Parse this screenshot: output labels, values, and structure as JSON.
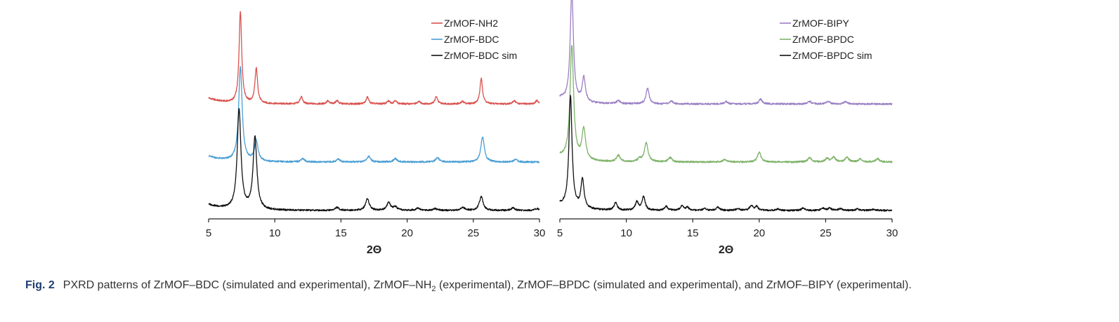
{
  "caption": {
    "label": "Fig. 2",
    "text_before": "PXRD patterns of ZrMOF–BDC (simulated and experimental), ZrMOF–NH",
    "subscript": "2",
    "text_after": " (experimental), ZrMOF–BPDC (simulated and experimental), and ZrMOF–BIPY (experimental)."
  },
  "chart_data": [
    {
      "type": "line",
      "xlabel": "2Θ",
      "ylabel": "",
      "xlim": [
        5,
        30
      ],
      "xticks": [
        5,
        10,
        15,
        20,
        25,
        30
      ],
      "y_axis_shown": false,
      "grid": false,
      "legend_position": "top-right",
      "series": [
        {
          "name": "ZrMOF-NH2",
          "color": "#d9534f",
          "offset": 2.2,
          "peaks": [
            {
              "x": 7.4,
              "h": 1.9,
              "w": 0.12
            },
            {
              "x": 8.6,
              "h": 0.72,
              "w": 0.12
            },
            {
              "x": 12.0,
              "h": 0.15,
              "w": 0.12
            },
            {
              "x": 14.0,
              "h": 0.06,
              "w": 0.12
            },
            {
              "x": 14.7,
              "h": 0.07,
              "w": 0.12
            },
            {
              "x": 17.0,
              "h": 0.14,
              "w": 0.12
            },
            {
              "x": 18.6,
              "h": 0.06,
              "w": 0.12
            },
            {
              "x": 19.1,
              "h": 0.07,
              "w": 0.12
            },
            {
              "x": 20.9,
              "h": 0.05,
              "w": 0.12
            },
            {
              "x": 22.2,
              "h": 0.15,
              "w": 0.12
            },
            {
              "x": 24.2,
              "h": 0.05,
              "w": 0.12
            },
            {
              "x": 25.6,
              "h": 0.52,
              "w": 0.12
            },
            {
              "x": 28.1,
              "h": 0.07,
              "w": 0.12
            },
            {
              "x": 29.8,
              "h": 0.07,
              "w": 0.12
            }
          ]
        },
        {
          "name": "ZrMOF-BDC",
          "color": "#4a9fd4",
          "offset": 1.0,
          "peaks": [
            {
              "x": 7.4,
              "h": 1.95,
              "w": 0.16
            },
            {
              "x": 8.6,
              "h": 0.42,
              "w": 0.16
            },
            {
              "x": 12.1,
              "h": 0.07,
              "w": 0.16
            },
            {
              "x": 14.8,
              "h": 0.06,
              "w": 0.16
            },
            {
              "x": 17.1,
              "h": 0.12,
              "w": 0.16
            },
            {
              "x": 19.1,
              "h": 0.07,
              "w": 0.16
            },
            {
              "x": 22.3,
              "h": 0.09,
              "w": 0.16
            },
            {
              "x": 25.7,
              "h": 0.52,
              "w": 0.16
            },
            {
              "x": 28.2,
              "h": 0.05,
              "w": 0.16
            }
          ]
        },
        {
          "name": "ZrMOF-BDC sim",
          "color": "#111111",
          "offset": 0.0,
          "peaks": [
            {
              "x": 7.3,
              "h": 2.05,
              "w": 0.17
            },
            {
              "x": 8.5,
              "h": 1.5,
              "w": 0.17
            },
            {
              "x": 14.7,
              "h": 0.06,
              "w": 0.17
            },
            {
              "x": 17.0,
              "h": 0.24,
              "w": 0.17
            },
            {
              "x": 18.6,
              "h": 0.16,
              "w": 0.17
            },
            {
              "x": 19.1,
              "h": 0.07,
              "w": 0.17
            },
            {
              "x": 20.8,
              "h": 0.05,
              "w": 0.17
            },
            {
              "x": 22.1,
              "h": 0.04,
              "w": 0.17
            },
            {
              "x": 24.2,
              "h": 0.06,
              "w": 0.17
            },
            {
              "x": 25.6,
              "h": 0.28,
              "w": 0.17
            },
            {
              "x": 28.0,
              "h": 0.05,
              "w": 0.17
            },
            {
              "x": 29.8,
              "h": 0.04,
              "w": 0.17
            }
          ]
        }
      ]
    },
    {
      "type": "line",
      "xlabel": "2Θ",
      "ylabel": "",
      "xlim": [
        5,
        30
      ],
      "xticks": [
        5,
        10,
        15,
        20,
        25,
        30
      ],
      "y_axis_shown": false,
      "grid": false,
      "legend_position": "top-right",
      "series": [
        {
          "name": "ZrMOF-BIPY",
          "color": "#9b7fc4",
          "offset": 2.2,
          "peaks": [
            {
              "x": 5.9,
              "h": 2.3,
              "w": 0.14
            },
            {
              "x": 6.8,
              "h": 0.5,
              "w": 0.14
            },
            {
              "x": 9.4,
              "h": 0.07,
              "w": 0.14
            },
            {
              "x": 11.6,
              "h": 0.32,
              "w": 0.14
            },
            {
              "x": 13.4,
              "h": 0.06,
              "w": 0.14
            },
            {
              "x": 17.5,
              "h": 0.05,
              "w": 0.14
            },
            {
              "x": 20.1,
              "h": 0.1,
              "w": 0.14
            },
            {
              "x": 23.8,
              "h": 0.05,
              "w": 0.14
            },
            {
              "x": 25.2,
              "h": 0.06,
              "w": 0.14
            },
            {
              "x": 26.5,
              "h": 0.05,
              "w": 0.14
            }
          ]
        },
        {
          "name": "ZrMOF-BPDC",
          "color": "#7fb36a",
          "offset": 1.0,
          "peaks": [
            {
              "x": 5.9,
              "h": 2.35,
              "w": 0.16
            },
            {
              "x": 6.8,
              "h": 0.64,
              "w": 0.16
            },
            {
              "x": 9.4,
              "h": 0.13,
              "w": 0.16
            },
            {
              "x": 11.0,
              "h": 0.06,
              "w": 0.16
            },
            {
              "x": 11.5,
              "h": 0.4,
              "w": 0.16
            },
            {
              "x": 13.3,
              "h": 0.09,
              "w": 0.16
            },
            {
              "x": 17.4,
              "h": 0.05,
              "w": 0.16
            },
            {
              "x": 20.0,
              "h": 0.2,
              "w": 0.16
            },
            {
              "x": 23.8,
              "h": 0.09,
              "w": 0.16
            },
            {
              "x": 25.1,
              "h": 0.07,
              "w": 0.16
            },
            {
              "x": 25.6,
              "h": 0.1,
              "w": 0.16
            },
            {
              "x": 26.6,
              "h": 0.1,
              "w": 0.16
            },
            {
              "x": 27.6,
              "h": 0.06,
              "w": 0.16
            },
            {
              "x": 28.9,
              "h": 0.07,
              "w": 0.16
            }
          ]
        },
        {
          "name": "ZrMOF-BPDC sim",
          "color": "#111111",
          "offset": 0.0,
          "peaks": [
            {
              "x": 5.8,
              "h": 2.3,
              "w": 0.14
            },
            {
              "x": 6.7,
              "h": 0.6,
              "w": 0.14
            },
            {
              "x": 9.2,
              "h": 0.15,
              "w": 0.14
            },
            {
              "x": 10.8,
              "h": 0.17,
              "w": 0.14
            },
            {
              "x": 11.3,
              "h": 0.28,
              "w": 0.14
            },
            {
              "x": 13.0,
              "h": 0.08,
              "w": 0.14
            },
            {
              "x": 14.2,
              "h": 0.1,
              "w": 0.14
            },
            {
              "x": 14.6,
              "h": 0.06,
              "w": 0.14
            },
            {
              "x": 15.9,
              "h": 0.04,
              "w": 0.14
            },
            {
              "x": 16.9,
              "h": 0.07,
              "w": 0.14
            },
            {
              "x": 18.4,
              "h": 0.04,
              "w": 0.14
            },
            {
              "x": 19.4,
              "h": 0.1,
              "w": 0.14
            },
            {
              "x": 19.8,
              "h": 0.08,
              "w": 0.14
            },
            {
              "x": 21.4,
              "h": 0.03,
              "w": 0.14
            },
            {
              "x": 23.3,
              "h": 0.05,
              "w": 0.14
            },
            {
              "x": 24.8,
              "h": 0.05,
              "w": 0.14
            },
            {
              "x": 25.3,
              "h": 0.05,
              "w": 0.14
            },
            {
              "x": 26.1,
              "h": 0.04,
              "w": 0.14
            },
            {
              "x": 27.4,
              "h": 0.03,
              "w": 0.14
            },
            {
              "x": 28.6,
              "h": 0.03,
              "w": 0.14
            }
          ]
        }
      ]
    }
  ]
}
